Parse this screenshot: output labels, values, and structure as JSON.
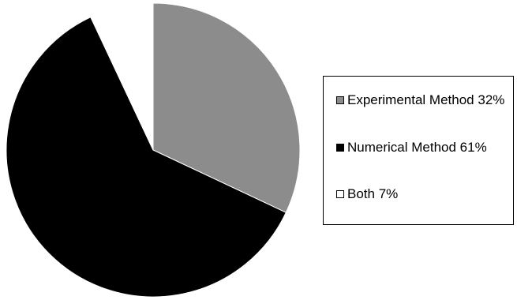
{
  "chart_data": {
    "type": "pie",
    "title": "",
    "legend_position": "right",
    "slices": [
      {
        "label": "Experimental Method 32%",
        "value": 32,
        "color": "#8c8c8c"
      },
      {
        "label": "Numerical Method 61%",
        "value": 61,
        "color": "#000000"
      },
      {
        "label": "Both 7%",
        "value": 7,
        "color": "#ffffff"
      }
    ]
  }
}
